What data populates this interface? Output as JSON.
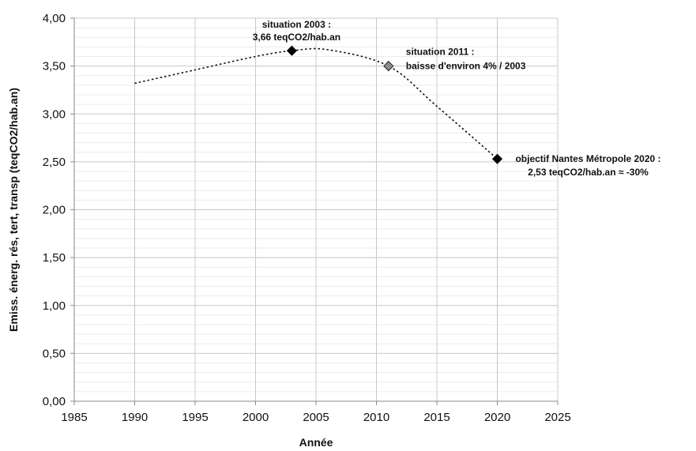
{
  "chart_data": {
    "type": "scatter",
    "title": "",
    "xlabel": "Année",
    "ylabel": "Emiss. énerg. rés, tert, transp (teqCO2/hab.an)",
    "xlim": [
      1985,
      2025
    ],
    "ylim": [
      0,
      4
    ],
    "x_ticks": [
      1985,
      1990,
      1995,
      2000,
      2005,
      2010,
      2015,
      2020,
      2025
    ],
    "y_ticks": [
      "0,00",
      "0,50",
      "1,00",
      "1,50",
      "2,00",
      "2,50",
      "3,00",
      "3,50",
      "4,00"
    ],
    "grid": true,
    "legend": "none",
    "trend_curve": {
      "style": "dotted",
      "x": [
        1990,
        1995,
        2000,
        2003,
        2006,
        2011,
        2015,
        2020
      ],
      "y": [
        3.32,
        3.46,
        3.6,
        3.66,
        3.67,
        3.5,
        3.08,
        2.53
      ]
    },
    "points": [
      {
        "x": 2003,
        "y": 3.66,
        "marker": "diamond",
        "color": "#000000",
        "annotation": [
          "situation 2003 :",
          "3,66 teqCO2/hab.an"
        ]
      },
      {
        "x": 2011,
        "y": 3.5,
        "marker": "diamond",
        "color": "#8c8c8c",
        "annotation": [
          "situation 2011 :",
          "baisse d'environ 4% / 2003"
        ]
      },
      {
        "x": 2020,
        "y": 2.53,
        "marker": "diamond",
        "color": "#000000",
        "annotation": [
          "objectif Nantes Métropole 2020 :",
          "2,53 teqCO2/hab.an ≈ -30%"
        ]
      }
    ]
  }
}
